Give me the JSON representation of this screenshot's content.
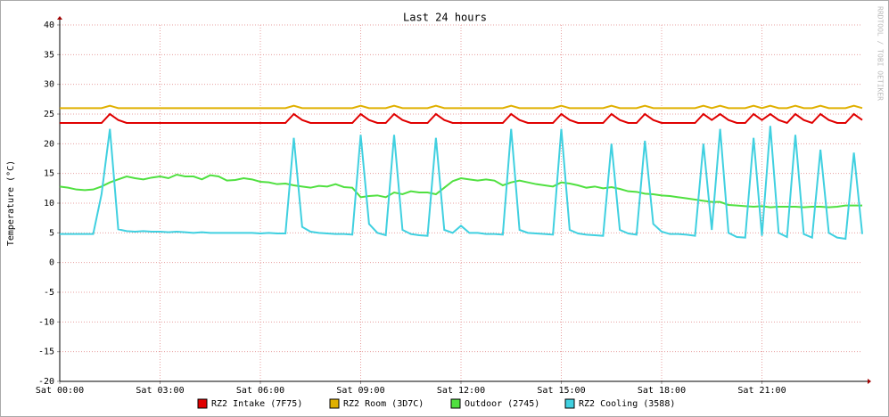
{
  "chart_data": {
    "type": "line",
    "title": "Last 24 hours",
    "y_label": "Temperature (°C)",
    "watermark": "RRDTOOL / TOBI OETIKER",
    "grid": true,
    "legend": "bottom",
    "xlim": [
      0,
      24
    ],
    "xticks": [
      {
        "value": 0,
        "label": "Sat 00:00"
      },
      {
        "value": 3,
        "label": "Sat 03:00"
      },
      {
        "value": 6,
        "label": "Sat 06:00"
      },
      {
        "value": 9,
        "label": "Sat 09:00"
      },
      {
        "value": 12,
        "label": "Sat 12:00"
      },
      {
        "value": 15,
        "label": "Sat 15:00"
      },
      {
        "value": 18,
        "label": "Sat 18:00"
      },
      {
        "value": 21,
        "label": "Sat 21:00"
      }
    ],
    "ylim": [
      -20,
      40
    ],
    "yticks": [
      -20,
      -15,
      -10,
      -5,
      0,
      5,
      10,
      15,
      20,
      25,
      30,
      35,
      40
    ],
    "x": [
      0,
      0.25,
      0.5,
      0.75,
      1,
      1.25,
      1.5,
      1.75,
      2,
      2.25,
      2.5,
      2.75,
      3,
      3.25,
      3.5,
      3.75,
      4,
      4.25,
      4.5,
      4.75,
      5,
      5.25,
      5.5,
      5.75,
      6,
      6.25,
      6.5,
      6.75,
      7,
      7.25,
      7.5,
      7.75,
      8,
      8.25,
      8.5,
      8.75,
      9,
      9.25,
      9.5,
      9.75,
      10,
      10.25,
      10.5,
      10.75,
      11,
      11.25,
      11.5,
      11.75,
      12,
      12.25,
      12.5,
      12.75,
      13,
      13.25,
      13.5,
      13.75,
      14,
      14.25,
      14.5,
      14.75,
      15,
      15.25,
      15.5,
      15.75,
      16,
      16.25,
      16.5,
      16.75,
      17,
      17.25,
      17.5,
      17.75,
      18,
      18.25,
      18.5,
      18.75,
      19,
      19.25,
      19.5,
      19.75,
      20,
      20.25,
      20.5,
      20.75,
      21,
      21.25,
      21.5,
      21.75,
      22,
      22.25,
      22.5,
      22.75,
      23,
      23.25,
      23.5,
      23.75,
      24
    ],
    "series": [
      {
        "name": "RZ2 Intake (7F75)",
        "color": "#e00000",
        "values": [
          23.5,
          23.5,
          23.5,
          23.5,
          23.5,
          23.5,
          25,
          24,
          23.5,
          23.5,
          23.5,
          23.5,
          23.5,
          23.5,
          23.5,
          23.5,
          23.5,
          23.5,
          23.5,
          23.5,
          23.5,
          23.5,
          23.5,
          23.5,
          23.5,
          23.5,
          23.5,
          23.5,
          25,
          24,
          23.5,
          23.5,
          23.5,
          23.5,
          23.5,
          23.5,
          25,
          24,
          23.5,
          23.5,
          25,
          24,
          23.5,
          23.5,
          23.5,
          25,
          24,
          23.5,
          23.5,
          23.5,
          23.5,
          23.5,
          23.5,
          23.5,
          25,
          24,
          23.5,
          23.5,
          23.5,
          23.5,
          25,
          24,
          23.5,
          23.5,
          23.5,
          23.5,
          25,
          24,
          23.5,
          23.5,
          25,
          24,
          23.5,
          23.5,
          23.5,
          23.5,
          23.5,
          25,
          24,
          25,
          24,
          23.5,
          23.5,
          25,
          24,
          25,
          24,
          23.5,
          25,
          24,
          23.5,
          25,
          24,
          23.5,
          23.5,
          25,
          24
        ]
      },
      {
        "name": "RZ2 Room (3D7C)",
        "color": "#e0b000",
        "values": [
          26,
          26,
          26,
          26,
          26,
          26,
          26.4,
          26,
          26,
          26,
          26,
          26,
          26,
          26,
          26,
          26,
          26,
          26,
          26,
          26,
          26,
          26,
          26,
          26,
          26,
          26,
          26,
          26,
          26.4,
          26,
          26,
          26,
          26,
          26,
          26,
          26,
          26.4,
          26,
          26,
          26,
          26.4,
          26,
          26,
          26,
          26,
          26.4,
          26,
          26,
          26,
          26,
          26,
          26,
          26,
          26,
          26.4,
          26,
          26,
          26,
          26,
          26,
          26.4,
          26,
          26,
          26,
          26,
          26,
          26.4,
          26,
          26,
          26,
          26.4,
          26,
          26,
          26,
          26,
          26,
          26,
          26.4,
          26,
          26.4,
          26,
          26,
          26,
          26.4,
          26,
          26.4,
          26,
          26,
          26.4,
          26,
          26,
          26.4,
          26,
          26,
          26,
          26.4,
          26
        ]
      },
      {
        "name": "Outdoor (2745)",
        "color": "#50e040",
        "values": [
          12.8,
          12.6,
          12.3,
          12.2,
          12.3,
          12.8,
          13.5,
          14.0,
          14.5,
          14.2,
          14.0,
          14.3,
          14.5,
          14.2,
          14.8,
          14.5,
          14.5,
          14.0,
          14.7,
          14.5,
          13.8,
          13.9,
          14.2,
          14.0,
          13.6,
          13.5,
          13.2,
          13.3,
          13.0,
          12.8,
          12.6,
          12.9,
          12.8,
          13.2,
          12.7,
          12.6,
          11.0,
          11.2,
          11.3,
          11.0,
          11.8,
          11.5,
          12.0,
          11.8,
          11.8,
          11.5,
          12.6,
          13.7,
          14.2,
          14.0,
          13.8,
          14.0,
          13.8,
          13.0,
          13.5,
          13.8,
          13.5,
          13.2,
          13.0,
          12.8,
          13.5,
          13.3,
          13.0,
          12.6,
          12.8,
          12.5,
          12.7,
          12.4,
          12.0,
          11.9,
          11.6,
          11.5,
          11.3,
          11.2,
          11.0,
          10.8,
          10.6,
          10.4,
          10.2,
          10.2,
          9.7,
          9.6,
          9.5,
          9.4,
          9.5,
          9.3,
          9.4,
          9.4,
          9.4,
          9.3,
          9.4,
          9.4,
          9.3,
          9.4,
          9.6,
          9.6,
          9.6
        ]
      },
      {
        "name": "RZ2 Cooling (3588)",
        "color": "#40d0e0",
        "values": [
          4.8,
          4.8,
          4.8,
          4.8,
          4.8,
          11.5,
          22.5,
          5.6,
          5.3,
          5.2,
          5.3,
          5.2,
          5.2,
          5.1,
          5.2,
          5.1,
          5.0,
          5.1,
          5.0,
          5.0,
          5.0,
          5.0,
          5.0,
          5.0,
          4.9,
          5.0,
          4.9,
          4.9,
          21,
          6.0,
          5.2,
          5.0,
          4.9,
          4.8,
          4.8,
          4.7,
          21.5,
          6.5,
          5.0,
          4.6,
          21.5,
          5.5,
          4.8,
          4.6,
          4.5,
          21,
          5.5,
          5.0,
          6.2,
          5.0,
          5.0,
          4.8,
          4.8,
          4.7,
          22.5,
          5.5,
          5.0,
          4.9,
          4.8,
          4.7,
          22.5,
          5.5,
          4.9,
          4.7,
          4.6,
          4.5,
          20,
          5.5,
          4.9,
          4.7,
          20.5,
          6.5,
          5.2,
          4.8,
          4.8,
          4.7,
          4.5,
          20,
          5.5,
          22.5,
          5.0,
          4.3,
          4.2,
          21,
          4.5,
          23,
          5.0,
          4.3,
          21.5,
          4.8,
          4.2,
          19,
          5.0,
          4.2,
          4.0,
          18.5,
          4.8
        ]
      }
    ]
  }
}
